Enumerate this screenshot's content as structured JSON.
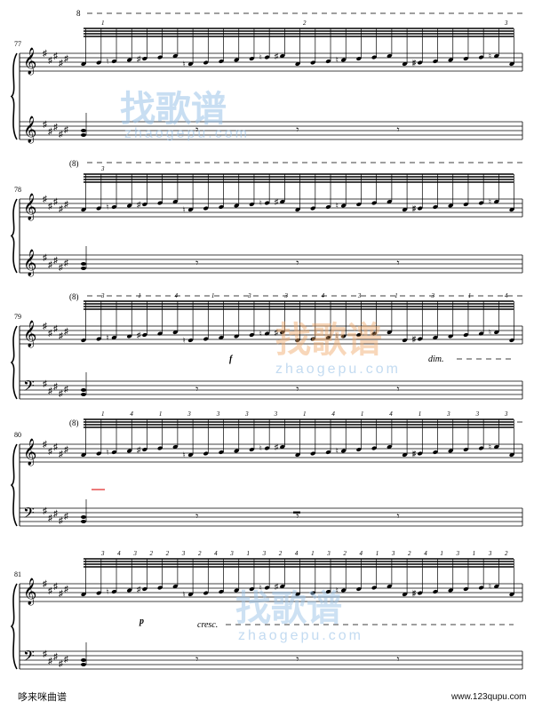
{
  "score": {
    "systems": [
      {
        "measure": "77",
        "top_marks": [
          "8"
        ],
        "bottom_marks": [
          "(8)"
        ],
        "fingerings": [
          "1",
          "2",
          "3"
        ],
        "dynamics": []
      },
      {
        "measure": "78",
        "top_marks": [],
        "bottom_marks": [
          "(8)"
        ],
        "fingerings": [
          "3"
        ],
        "dynamics": []
      },
      {
        "measure": "79",
        "top_marks": [],
        "bottom_marks": [
          "(8)"
        ],
        "fingerings": [
          "3",
          "1",
          "4",
          "1",
          "3",
          "3",
          "4",
          "3",
          "1",
          "3",
          "1",
          "4"
        ],
        "dynamics": [
          "f",
          "dim."
        ]
      },
      {
        "measure": "80",
        "top_marks": [],
        "bottom_marks": [],
        "fingerings": [
          "1",
          "4",
          "1",
          "3",
          "3",
          "3",
          "3",
          "1",
          "4",
          "1",
          "4",
          "1",
          "3",
          "3",
          "3"
        ],
        "dynamics": []
      },
      {
        "measure": "81",
        "top_marks": [],
        "bottom_marks": [],
        "fingerings": [
          "3",
          "4",
          "3",
          "2",
          "2",
          "3",
          "2",
          "4",
          "3",
          "1",
          "3",
          "2",
          "4",
          "1",
          "3",
          "2",
          "4",
          "1",
          "3",
          "2",
          "4",
          "1",
          "3",
          "1",
          "3",
          "2"
        ],
        "dynamics": [
          "p",
          "cresc."
        ]
      }
    ]
  },
  "watermark": {
    "text": "找歌谱",
    "url": "zhaogepu.com"
  },
  "footer": {
    "left": "哆来咪曲谱",
    "right": "www.123qupu.com"
  },
  "colors": {
    "ink": "#000000",
    "watermark_orange": "#f0a868",
    "watermark_blue": "#9cc4e8",
    "accent_red": "#e02020"
  }
}
